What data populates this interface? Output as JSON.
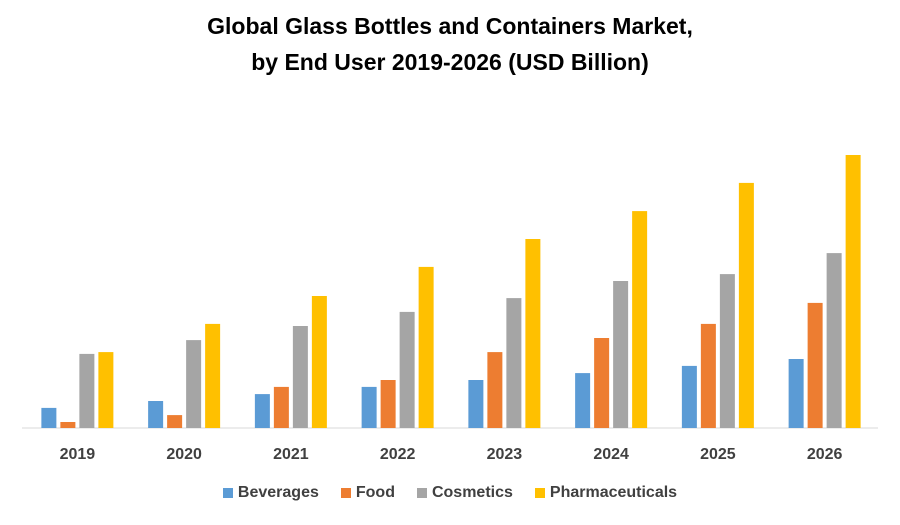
{
  "chart_data": {
    "type": "bar",
    "title": "Global Glass Bottles and Containers Market, by End User 2019-2026 (USD Billion)",
    "title_lines": [
      "Global Glass Bottles and Containers Market,",
      "by End User 2019-2026 (USD Billion)"
    ],
    "xlabel": "",
    "ylabel": "",
    "categories": [
      "2019",
      "2020",
      "2021",
      "2022",
      "2023",
      "2024",
      "2025",
      "2026"
    ],
    "series": [
      {
        "name": "Beverages",
        "color": "#5B9BD5",
        "values": [
          6.7,
          9.0,
          11.3,
          13.7,
          16.0,
          18.3,
          20.7,
          23.0
        ]
      },
      {
        "name": "Food",
        "color": "#ED7D31",
        "values": [
          2.0,
          4.3,
          13.7,
          16.0,
          25.3,
          30.0,
          34.7,
          41.7
        ]
      },
      {
        "name": "Cosmetics",
        "color": "#A5A5A5",
        "values": [
          24.7,
          29.3,
          34.0,
          38.7,
          43.3,
          49.0,
          51.3,
          58.3
        ]
      },
      {
        "name": "Pharmaceuticals",
        "color": "#FFC000",
        "values": [
          25.3,
          34.7,
          44.0,
          53.7,
          63.0,
          72.3,
          81.7,
          91.0
        ]
      }
    ],
    "ylim": [
      0,
      100
    ],
    "grid": false,
    "y_axis_visible": false,
    "legend_position": "bottom"
  }
}
